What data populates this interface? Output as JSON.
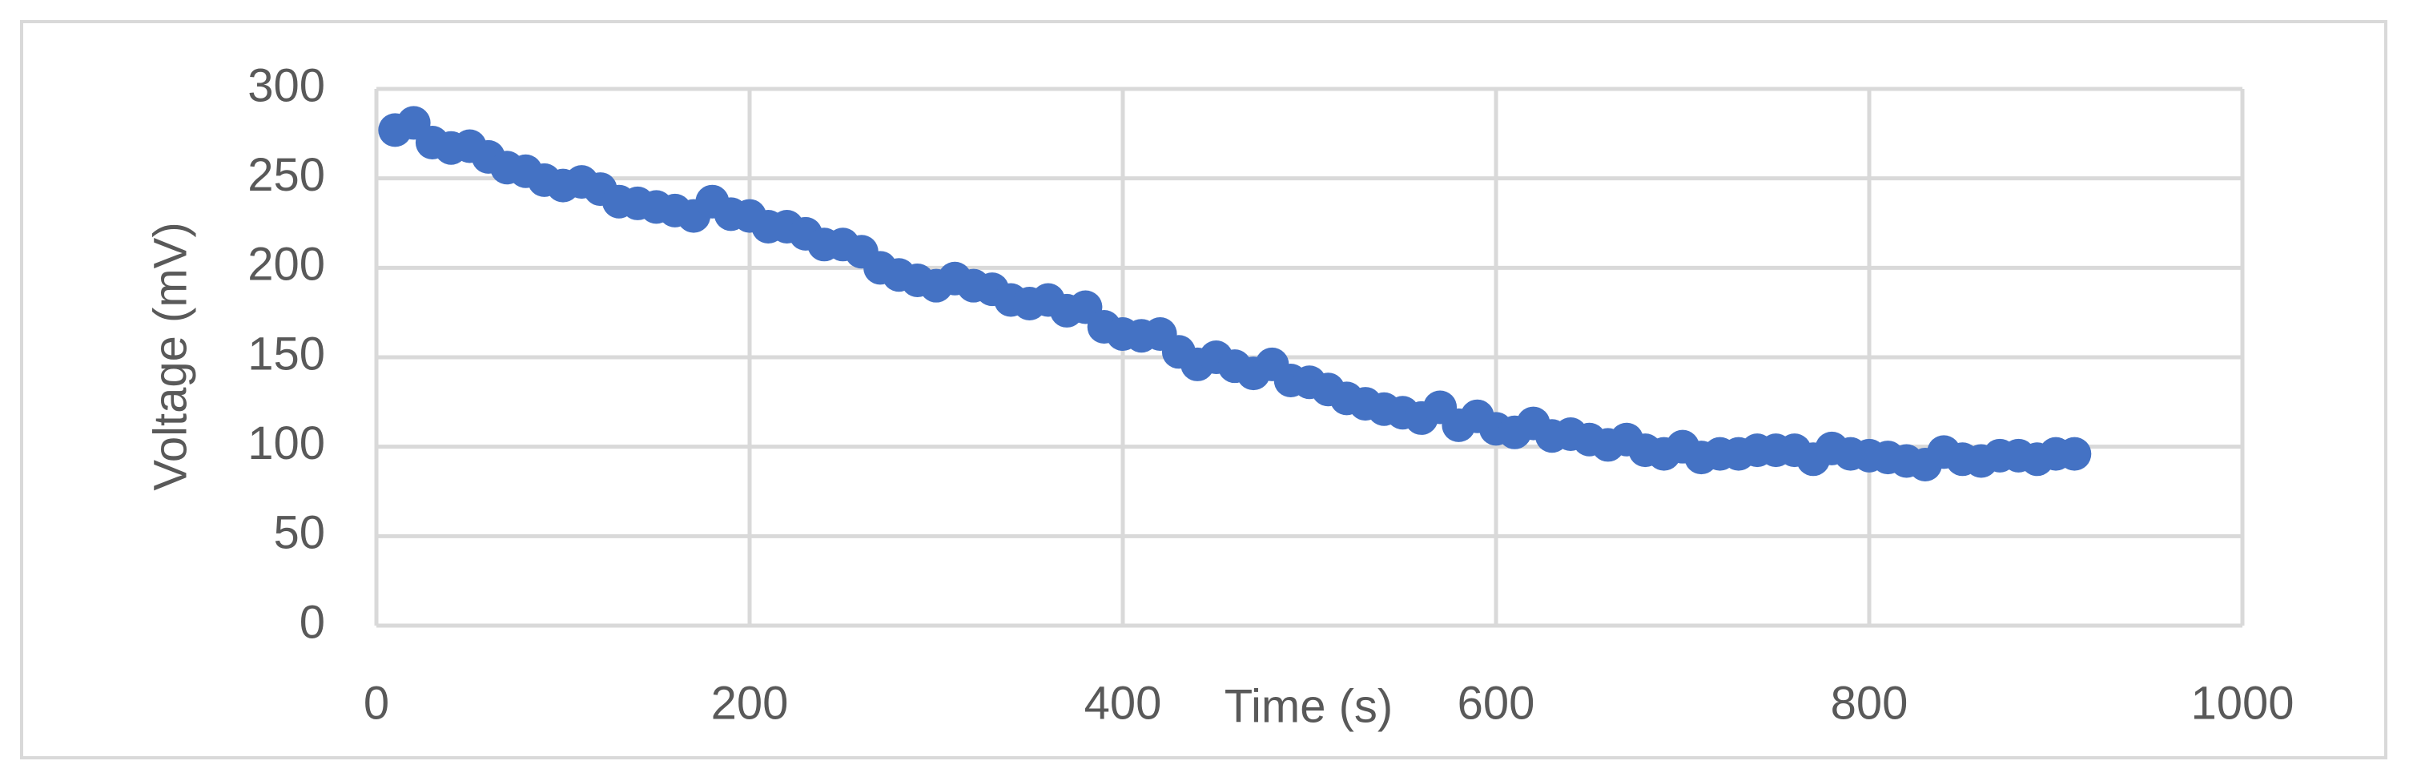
{
  "chart_data": {
    "type": "scatter",
    "xlabel": "Time (s)",
    "ylabel": "Voltage (mV)",
    "x": [
      10,
      20,
      30,
      40,
      50,
      60,
      70,
      80,
      90,
      100,
      110,
      120,
      130,
      140,
      150,
      160,
      170,
      180,
      190,
      200,
      210,
      220,
      230,
      240,
      250,
      260,
      270,
      280,
      290,
      300,
      310,
      320,
      330,
      340,
      350,
      360,
      370,
      380,
      390,
      400,
      410,
      420,
      430,
      440,
      450,
      460,
      470,
      480,
      490,
      500,
      510,
      520,
      530,
      540,
      550,
      560,
      570,
      580,
      590,
      600,
      610,
      620,
      630,
      640,
      650,
      660,
      670,
      680,
      690,
      700,
      710,
      720,
      730,
      740,
      750,
      760,
      770,
      780,
      790,
      800,
      810,
      820,
      830,
      840,
      850,
      860,
      870,
      880,
      890,
      900,
      910
    ],
    "values": [
      277,
      281,
      270,
      267,
      268,
      262,
      256,
      254,
      249,
      246,
      248,
      244,
      237,
      236,
      234,
      232,
      229,
      237,
      230,
      229,
      223,
      223,
      219,
      213,
      213,
      209,
      200,
      196,
      193,
      190,
      194,
      190,
      188,
      182,
      180,
      182,
      176,
      178,
      167,
      163,
      162,
      163,
      153,
      146,
      150,
      145,
      141,
      146,
      137,
      136,
      132,
      127,
      124,
      121,
      119,
      116,
      122,
      112,
      117,
      110,
      108,
      113,
      106,
      107,
      104,
      101,
      104,
      98,
      96,
      100,
      94,
      96,
      96,
      98,
      98,
      98,
      93,
      99,
      96,
      95,
      94,
      92,
      90,
      97,
      93,
      92,
      95,
      95,
      93,
      96,
      96
    ],
    "color": "#4472c4",
    "xlim": [
      0,
      1000
    ],
    "xticks": [
      0,
      200,
      400,
      600,
      800,
      1000
    ],
    "ylim": [
      0,
      300
    ],
    "yticks": [
      0,
      50,
      100,
      150,
      200,
      250,
      300
    ],
    "grid": true
  }
}
